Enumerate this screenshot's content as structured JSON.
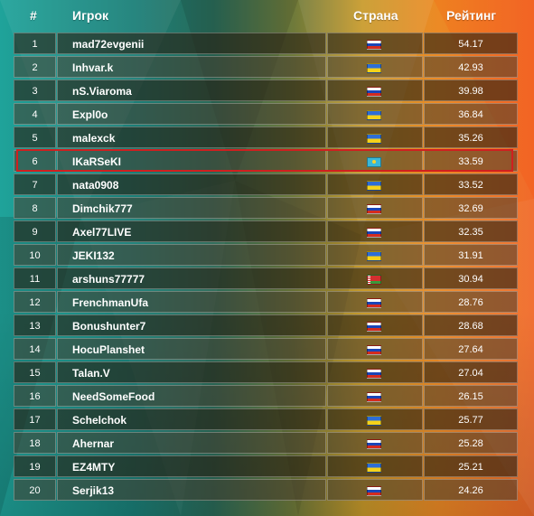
{
  "header": {
    "num": "#",
    "player": "Игрок",
    "country": "Страна",
    "rating": "Рейтинг"
  },
  "colors": {
    "highlight_border": "#d01f1f"
  },
  "highlighted_rank": "6",
  "rows": [
    {
      "num": "1",
      "player": "mad72evgenii",
      "flag": "ru-flag-icon",
      "rating": "54.17"
    },
    {
      "num": "2",
      "player": "Inhvar.k",
      "flag": "ua-flag-icon",
      "rating": "42.93"
    },
    {
      "num": "3",
      "player": "nS.Viaroma",
      "flag": "ru-flag-icon",
      "rating": "39.98"
    },
    {
      "num": "4",
      "player": "Expl0o",
      "flag": "ua-flag-icon",
      "rating": "36.84"
    },
    {
      "num": "5",
      "player": "malexck",
      "flag": "ua-flag-icon",
      "rating": "35.26"
    },
    {
      "num": "6",
      "player": "IKaRSeKI",
      "flag": "kz-flag-icon",
      "rating": "33.59"
    },
    {
      "num": "7",
      "player": "nata0908",
      "flag": "ua-flag-icon",
      "rating": "33.52"
    },
    {
      "num": "8",
      "player": "Dimchik777",
      "flag": "ru-flag-icon",
      "rating": "32.69"
    },
    {
      "num": "9",
      "player": "Axel77LIVE",
      "flag": "ru-flag-icon",
      "rating": "32.35"
    },
    {
      "num": "10",
      "player": "JEKI132",
      "flag": "ua-flag-icon",
      "rating": "31.91"
    },
    {
      "num": "11",
      "player": "arshuns77777",
      "flag": "by-flag-icon",
      "rating": "30.94"
    },
    {
      "num": "12",
      "player": "FrenchmanUfa",
      "flag": "ru-flag-icon",
      "rating": "28.76"
    },
    {
      "num": "13",
      "player": "Bonushunter7",
      "flag": "ru-flag-icon",
      "rating": "28.68"
    },
    {
      "num": "14",
      "player": "HocuPlanshet",
      "flag": "ru-flag-icon",
      "rating": "27.64"
    },
    {
      "num": "15",
      "player": "Talan.V",
      "flag": "ru-flag-icon",
      "rating": "27.04"
    },
    {
      "num": "16",
      "player": "NeedSomeFood",
      "flag": "ru-flag-icon",
      "rating": "26.15"
    },
    {
      "num": "17",
      "player": "Schelchok",
      "flag": "ua-flag-icon",
      "rating": "25.77"
    },
    {
      "num": "18",
      "player": "Ahernar",
      "flag": "ru-flag-icon",
      "rating": "25.28"
    },
    {
      "num": "19",
      "player": "EZ4MTY",
      "flag": "ua-flag-icon",
      "rating": "25.21"
    },
    {
      "num": "20",
      "player": "Serjik13",
      "flag": "ru-flag-icon",
      "rating": "24.26"
    }
  ]
}
